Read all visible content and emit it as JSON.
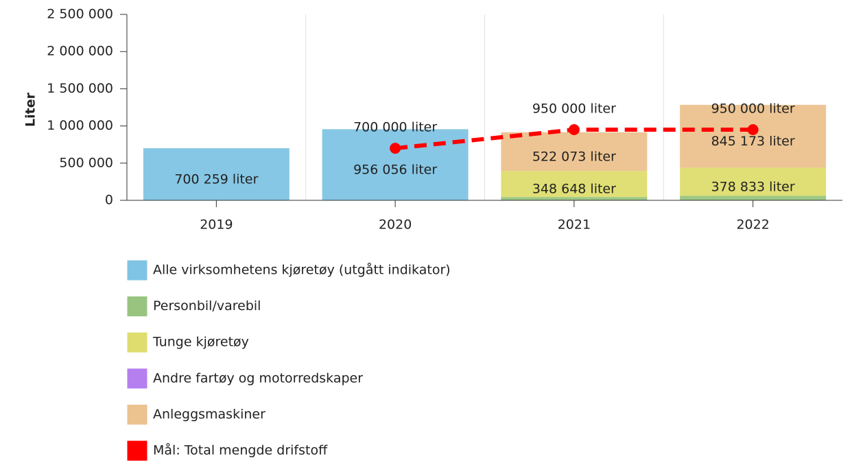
{
  "chart_data": {
    "type": "bar",
    "stacked": true,
    "y_label": "Liter",
    "categories": [
      "2019",
      "2020",
      "2021",
      "2022"
    ],
    "ylim": [
      0,
      2500000
    ],
    "yticks": [
      0,
      {
        "value": 500000,
        "label": "500 000"
      },
      {
        "value": 1000000,
        "label": "1 000 000"
      },
      {
        "value": 1500000,
        "label": "1 500 000"
      },
      {
        "value": 2000000,
        "label": "2 000 000"
      },
      {
        "value": 2500000,
        "label": "2 500 000"
      }
    ],
    "series": [
      {
        "name": "Alle virksomhetens kjøretøy (utgått indikator)",
        "color": "#7fc4e4",
        "values": [
          700259,
          956056,
          null,
          null
        ],
        "value_labels": [
          "700 259 liter",
          "956 056 liter",
          null,
          null
        ]
      },
      {
        "name": "Personbil/varebil",
        "color": "#98c47f",
        "values": [
          null,
          null,
          45000,
          60000
        ]
      },
      {
        "name": "Tunge kjøretøy",
        "color": "#dedd6e",
        "values": [
          null,
          null,
          348648,
          378833
        ],
        "value_labels": [
          null,
          null,
          "348 648 liter",
          "378 833 liter"
        ]
      },
      {
        "name": "Andre fartøy og motorredskaper",
        "color": "#b57ff0",
        "values": [
          null,
          null,
          0,
          0
        ]
      },
      {
        "name": "Anleggsmaskiner",
        "color": "#ecc28e",
        "values": [
          null,
          null,
          522073,
          845173
        ],
        "value_labels": [
          null,
          null,
          "522 073 liter",
          "845 173 liter"
        ]
      },
      {
        "name": "Mål: Total mengde drifstoff",
        "color": "#ff0000",
        "type": "line",
        "values": [
          null,
          700000,
          950000,
          950000
        ],
        "value_labels": [
          null,
          "700 000 liter",
          "950 000 liter",
          "950 000 liter"
        ]
      }
    ]
  }
}
